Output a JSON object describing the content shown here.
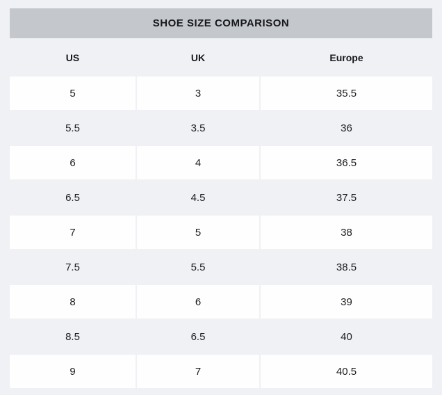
{
  "colors": {
    "page_background": "#eff1f4",
    "title_bar_background": "#c4c7cc",
    "row_card_background": "#fefefe",
    "text": "#1a1b1e"
  },
  "title_bar": {
    "label": "SHOE SIZE COMPARISON"
  },
  "table": {
    "columns": [
      "US",
      "UK",
      "Europe"
    ],
    "rows": [
      [
        "5",
        "3",
        "35.5"
      ],
      [
        "5.5",
        "3.5",
        "36"
      ],
      [
        "6",
        "4",
        "36.5"
      ],
      [
        "6.5",
        "4.5",
        "37.5"
      ],
      [
        "7",
        "5",
        "38"
      ],
      [
        "7.5",
        "5.5",
        "38.5"
      ],
      [
        "8",
        "6",
        "39"
      ],
      [
        "8.5",
        "6.5",
        "40"
      ],
      [
        "9",
        "7",
        "40.5"
      ]
    ]
  }
}
